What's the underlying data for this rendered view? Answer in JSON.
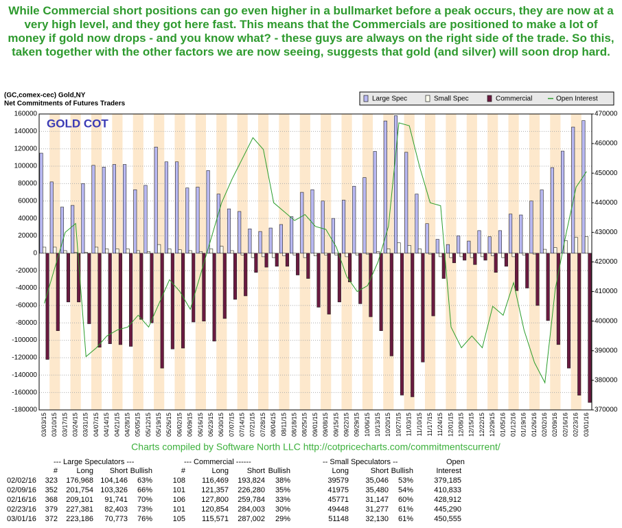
{
  "headline": "While Commercial short positions can go even higher in a bullmarket before a peak occurs, they are now at a very high level, and they got here fast. This means that the Commercials are positioned to make a lot of money if gold now drops - and you know what? - these guys are always on the right side of the trade. So this, taken together with the other factors we are now seeing, suggests that gold (and silver) will soon drop hard.",
  "chart_data": {
    "type": "bar",
    "title": "(GC,comex-cec) Gold,NY",
    "subtitle": "Net Commitments of Futures Traders",
    "annotation": "GOLD COT",
    "categories": [
      "03/03/15",
      "03/10/15",
      "03/17/15",
      "03/24/15",
      "03/31/15",
      "04/07/15",
      "04/14/15",
      "04/21/15",
      "04/28/15",
      "05/05/15",
      "05/12/15",
      "05/19/15",
      "05/26/15",
      "06/02/15",
      "06/09/15",
      "06/16/15",
      "06/23/15",
      "06/30/15",
      "07/07/15",
      "07/14/15",
      "07/21/15",
      "07/28/15",
      "08/04/15",
      "08/11/15",
      "08/18/15",
      "08/25/15",
      "09/01/15",
      "09/08/15",
      "09/15/15",
      "09/22/15",
      "09/29/15",
      "10/06/15",
      "10/13/15",
      "10/20/15",
      "10/27/15",
      "11/03/15",
      "11/10/15",
      "11/17/15",
      "11/24/15",
      "12/01/15",
      "12/08/15",
      "12/15/15",
      "12/22/15",
      "12/29/15",
      "01/05/16",
      "01/12/16",
      "01/19/16",
      "01/26/16",
      "02/02/16",
      "02/09/16",
      "02/16/16",
      "02/23/16",
      "03/01/16"
    ],
    "series": [
      {
        "name": "Large Spec",
        "color": "#b8b8f2",
        "values": [
          115000,
          82000,
          53000,
          55000,
          80000,
          101000,
          99000,
          102000,
          102000,
          73000,
          78000,
          122000,
          105000,
          105000,
          75000,
          76000,
          95000,
          68000,
          51000,
          48000,
          28000,
          25000,
          29000,
          33000,
          42000,
          70000,
          73000,
          60000,
          40000,
          61000,
          77000,
          87000,
          117000,
          152000,
          158000,
          116000,
          68000,
          34000,
          16000,
          10000,
          20000,
          14000,
          26000,
          19000,
          26000,
          45000,
          44000,
          60000,
          72822,
          98428,
          117360,
          144978,
          152413
        ]
      },
      {
        "name": "Small Spec",
        "color": "#fffff0",
        "values": [
          7000,
          7000,
          3000,
          1000,
          1000,
          7000,
          5000,
          5000,
          5000,
          3000,
          2000,
          10000,
          5000,
          4000,
          3000,
          2000,
          5000,
          8000,
          3000,
          -2000,
          -5000,
          -4000,
          -5000,
          -3000,
          -2000,
          -5000,
          -3000,
          -2000,
          -2000,
          -4000,
          -2000,
          -1000,
          2000,
          5000,
          12000,
          9000,
          5000,
          -1000,
          -4000,
          -5000,
          -4000,
          -5000,
          -4000,
          -3000,
          -5000,
          -4000,
          -2000,
          -1000,
          4533,
          6495,
          14624,
          18171,
          19018
        ]
      },
      {
        "name": "Commercial",
        "color": "#6a1a40",
        "values": [
          -122000,
          -89000,
          -56000,
          -56000,
          -81000,
          -108000,
          -104000,
          -105000,
          -107000,
          -76000,
          -80000,
          -132000,
          -110000,
          -109000,
          -79000,
          -78000,
          -101000,
          -75000,
          -53000,
          -49000,
          -22000,
          -16000,
          -15000,
          -15000,
          -25000,
          -29000,
          -62000,
          -70000,
          -56000,
          -33000,
          -58000,
          -73000,
          -89000,
          -118000,
          -163000,
          -165000,
          -125000,
          -72000,
          -29000,
          -11000,
          -8000,
          -13000,
          -8000,
          -22000,
          -15000,
          -43000,
          -40000,
          -60000,
          -77355,
          -104923,
          -131984,
          -163149,
          -171431
        ]
      },
      {
        "name": "Open Interest",
        "color": "#2a9d2a",
        "type": "line",
        "axis": "y2",
        "values": [
          406000,
          418000,
          430000,
          433000,
          388000,
          391000,
          395000,
          397000,
          398000,
          402000,
          398000,
          406000,
          414000,
          410000,
          404000,
          416000,
          428000,
          440000,
          448000,
          455000,
          462000,
          458000,
          440000,
          437000,
          434000,
          436000,
          432000,
          431000,
          425000,
          415000,
          410000,
          412000,
          420000,
          432000,
          467000,
          466000,
          452000,
          440000,
          439000,
          398000,
          391000,
          395000,
          391000,
          405000,
          402000,
          413000,
          397000,
          386000,
          379185,
          410833,
          428912,
          445290,
          450555
        ]
      }
    ],
    "ylim": [
      -180000,
      160000
    ],
    "yticks": [
      -180000,
      -160000,
      -140000,
      -120000,
      -100000,
      -80000,
      -60000,
      -40000,
      -20000,
      0,
      20000,
      40000,
      60000,
      80000,
      100000,
      120000,
      140000,
      160000
    ],
    "y2lim": [
      370000,
      470000
    ],
    "y2ticks": [
      370000,
      380000,
      390000,
      400000,
      410000,
      420000,
      430000,
      440000,
      450000,
      460000,
      470000
    ],
    "grid": true,
    "legend": "top-right"
  },
  "credit": "Charts compiled by Software North LLC  http://cotpricecharts.com/commitmentscurrent/",
  "table": {
    "groups": [
      "--- Large Speculators ---",
      "--- Commercial ------",
      "-- Small Speculators --",
      "Open"
    ],
    "columns": [
      "#",
      "Long",
      "Short",
      "Bullish",
      "#",
      "Long",
      "Short",
      "Bullish",
      "Long",
      "Short",
      "Bullish",
      "Interest"
    ],
    "rows": [
      [
        "02/02/16",
        "323",
        "176,968",
        "104,146",
        "63%",
        "108",
        "116,469",
        "193,824",
        "38%",
        "39579",
        "35,046",
        "53%",
        "379,185"
      ],
      [
        "02/09/16",
        "352",
        "201,754",
        "103,326",
        "66%",
        "101",
        "121,357",
        "226,280",
        "35%",
        "41975",
        "35,480",
        "54%",
        "410,833"
      ],
      [
        "02/16/16",
        "368",
        "209,101",
        "91,741",
        "70%",
        "106",
        "127,800",
        "259,784",
        "33%",
        "45771",
        "31,147",
        "60%",
        "428,912"
      ],
      [
        "02/23/16",
        "379",
        "227,381",
        "82,403",
        "73%",
        "101",
        "120,854",
        "284,003",
        "30%",
        "49448",
        "31,277",
        "61%",
        "445,290"
      ],
      [
        "03/01/16",
        "372",
        "223,186",
        "70,773",
        "76%",
        "105",
        "115,571",
        "287,002",
        "29%",
        "51148",
        "32,130",
        "61%",
        "450,555"
      ]
    ]
  }
}
